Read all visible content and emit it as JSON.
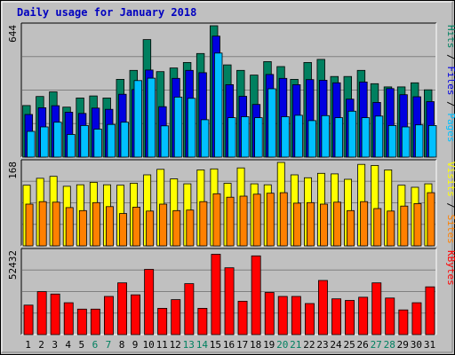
{
  "chart_data": {
    "type": "bar",
    "title": "Daily usage for January 2018",
    "categories": [
      "1",
      "2",
      "3",
      "4",
      "5",
      "6",
      "7",
      "8",
      "9",
      "10",
      "11",
      "12",
      "13",
      "14",
      "15",
      "16",
      "17",
      "18",
      "19",
      "20",
      "21",
      "22",
      "23",
      "24",
      "25",
      "26",
      "27",
      "28",
      "29",
      "30",
      "31"
    ],
    "weekend_days": [
      6,
      7,
      13,
      14,
      20,
      21,
      27,
      28
    ],
    "colors": {
      "pages": "#00c0ff",
      "files": "#0000e0",
      "hits": "#008060",
      "sites": "#ff8000",
      "visits": "#ffff00",
      "kbytes": "#ff0000",
      "title": "#0000c0",
      "weekday_label": "#000000",
      "weekend_label": "#008060",
      "panel_background": "#c0c0c0"
    },
    "panels": [
      {
        "id": "hits",
        "ymax_label": "644",
        "ylim": [
          0,
          644
        ],
        "legend": [
          {
            "text": "Hits",
            "color": "#008060"
          },
          {
            "text": " / ",
            "color": "#000000"
          },
          {
            "text": "Files",
            "color": "#0000e0"
          },
          {
            "text": " / ",
            "color": "#000000"
          },
          {
            "text": "Pages",
            "color": "#00c0ff"
          }
        ],
        "series": [
          {
            "name": "Hits",
            "color": "#008060",
            "values": [
              253,
              297,
              320,
              245,
              290,
              300,
              290,
              381,
              425,
              576,
              419,
              437,
              464,
              508,
              644,
              452,
              425,
              402,
              468,
              444,
              381,
              464,
              479,
              395,
              395,
              425,
              360,
              344,
              344,
              364,
              330
            ]
          },
          {
            "name": "Files",
            "color": "#0000e0",
            "values": [
              209,
              242,
              252,
              220,
              214,
              240,
              234,
              308,
              331,
              427,
              247,
              386,
              425,
              414,
              593,
              355,
              298,
              258,
              405,
              386,
              355,
              380,
              377,
              364,
              284,
              368,
              268,
              336,
              306,
              296,
              272
            ]
          },
          {
            "name": "Pages",
            "color": "#00c0ff",
            "values": [
              126,
              148,
              171,
              111,
              155,
              137,
              160,
              171,
              375,
              387,
              153,
              294,
              288,
              183,
              510,
              193,
              198,
              193,
              335,
              198,
              205,
              179,
              203,
              193,
              225,
              193,
              201,
              155,
              148,
              158,
              155
            ]
          }
        ]
      },
      {
        "id": "visits",
        "ymax_label": "168",
        "ylim": [
          0,
          168
        ],
        "legend": [
          {
            "text": "Visits",
            "color": "#ffff00"
          },
          {
            "text": " / ",
            "color": "#000000"
          },
          {
            "text": "Sites",
            "color": "#ff8000"
          }
        ],
        "series": [
          {
            "name": "Visits",
            "color": "#ffff00",
            "values": [
              122,
              136,
              140,
              120,
              123,
              128,
              123,
              122,
              126,
              143,
              154,
              135,
              125,
              153,
              155,
              126,
              157,
              125,
              123,
              168,
              143,
              137,
              146,
              145,
              134,
              164,
              162,
              153,
              122,
              118,
              125
            ]
          },
          {
            "name": "Sites",
            "color": "#ff8000",
            "values": [
              84,
              89,
              88,
              77,
              71,
              87,
              79,
              65,
              78,
              70,
              84,
              71,
              72,
              89,
              105,
              98,
              100,
              104,
              106,
              107,
              86,
              87,
              84,
              88,
              71,
              89,
              75,
              70,
              80,
              85,
              107
            ]
          }
        ]
      },
      {
        "id": "kbytes",
        "ymax_label": "52432",
        "ylim": [
          0,
          52432
        ],
        "legend": [
          {
            "text": "KBytes",
            "color": "#ff0000"
          }
        ],
        "series": [
          {
            "name": "KBytes",
            "color": "#ff0000",
            "values": [
              18500,
              27000,
              25500,
              20000,
              16000,
              16000,
              24000,
              32500,
              25000,
              41000,
              16500,
              22000,
              32000,
              16500,
              50500,
              42000,
              21000,
              49500,
              26500,
              24000,
              24000,
              19500,
              34000,
              22500,
              21500,
              23500,
              32500,
              23000,
              15500,
              20000,
              30000
            ]
          }
        ]
      }
    ]
  }
}
